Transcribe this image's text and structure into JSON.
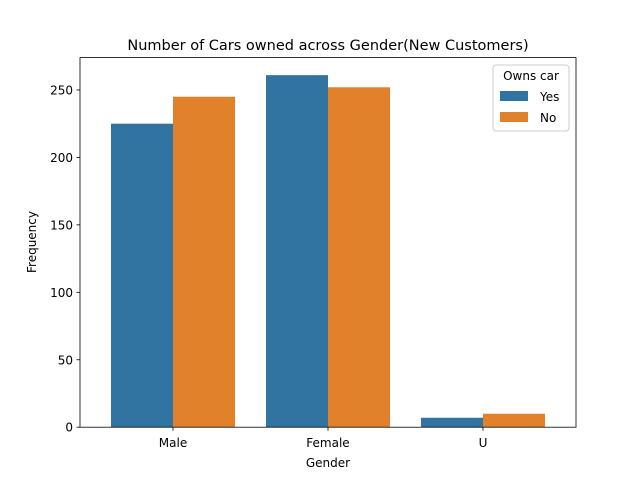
{
  "chart_data": {
    "type": "bar",
    "title": "Number of Cars owned across Gender(New Customers)",
    "xlabel": "Gender",
    "ylabel": "Frequency",
    "categories": [
      "Male",
      "Female",
      "U"
    ],
    "series": [
      {
        "name": "Yes",
        "values": [
          225,
          261,
          7
        ],
        "color": "#3274a1"
      },
      {
        "name": "No",
        "values": [
          245,
          252,
          10
        ],
        "color": "#e1812c"
      }
    ],
    "ylim": [
      0,
      274
    ],
    "yticks": [
      0,
      50,
      100,
      150,
      200,
      250
    ],
    "grid": false,
    "legend": {
      "title": "Owns car",
      "placement": "top-right"
    }
  }
}
